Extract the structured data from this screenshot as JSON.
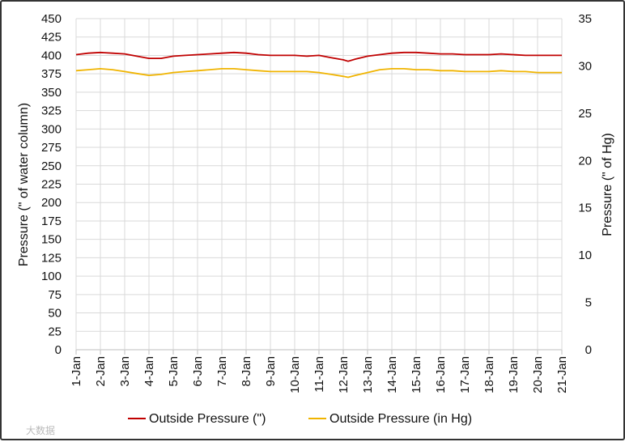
{
  "chart_data": {
    "type": "line",
    "categories": [
      "1-Jan",
      "2-Jan",
      "3-Jan",
      "4-Jan",
      "5-Jan",
      "6-Jan",
      "7-Jan",
      "8-Jan",
      "9-Jan",
      "10-Jan",
      "11-Jan",
      "12-Jan",
      "13-Jan",
      "14-Jan",
      "15-Jan",
      "16-Jan",
      "17-Jan",
      "18-Jan",
      "19-Jan",
      "20-Jan",
      "21-Jan"
    ],
    "x": [
      1,
      1.5,
      2,
      2.5,
      3,
      3.5,
      4,
      4.5,
      5,
      5.5,
      6,
      6.5,
      7,
      7.5,
      8,
      8.5,
      9,
      9.5,
      10,
      10.5,
      11,
      11.5,
      12,
      12.2,
      12.5,
      13,
      13.5,
      14,
      14.5,
      15,
      15.5,
      16,
      16.5,
      17,
      17.5,
      18,
      18.5,
      19,
      19.5,
      20,
      20.5,
      21
    ],
    "y_left": {
      "label": "Pressure (\" of water column)",
      "ylim": [
        0,
        450
      ],
      "ticks": [
        0,
        25,
        50,
        75,
        100,
        125,
        150,
        175,
        200,
        225,
        250,
        275,
        300,
        325,
        350,
        375,
        400,
        425,
        450
      ]
    },
    "y_right": {
      "label": "Pressure (\" of Hg)",
      "ylim": [
        0,
        35
      ],
      "ticks": [
        0,
        5,
        10,
        15,
        20,
        25,
        30,
        35
      ]
    },
    "series": [
      {
        "name": "Outside Pressure (\")",
        "axis": "left",
        "color": "#c00000",
        "values": [
          401,
          403,
          404,
          403,
          402,
          399,
          396,
          396,
          399,
          400,
          401,
          402,
          403,
          404,
          403,
          401,
          400,
          400,
          400,
          399,
          400,
          397,
          394,
          392,
          395,
          399,
          401,
          403,
          404,
          404,
          403,
          402,
          402,
          401,
          401,
          401,
          402,
          401,
          400,
          400,
          400,
          400
        ]
      },
      {
        "name": "Outside Pressure (in Hg)",
        "axis": "right",
        "color": "#f0b400",
        "values": [
          29.5,
          29.6,
          29.7,
          29.6,
          29.4,
          29.2,
          29.0,
          29.1,
          29.3,
          29.4,
          29.5,
          29.6,
          29.7,
          29.7,
          29.6,
          29.5,
          29.4,
          29.4,
          29.4,
          29.4,
          29.3,
          29.1,
          28.9,
          28.8,
          29.0,
          29.3,
          29.6,
          29.7,
          29.7,
          29.6,
          29.6,
          29.5,
          29.5,
          29.4,
          29.4,
          29.4,
          29.5,
          29.4,
          29.4,
          29.3,
          29.3,
          29.3
        ]
      }
    ],
    "grid": true,
    "legend": "bottom"
  },
  "watermark": "大数据"
}
